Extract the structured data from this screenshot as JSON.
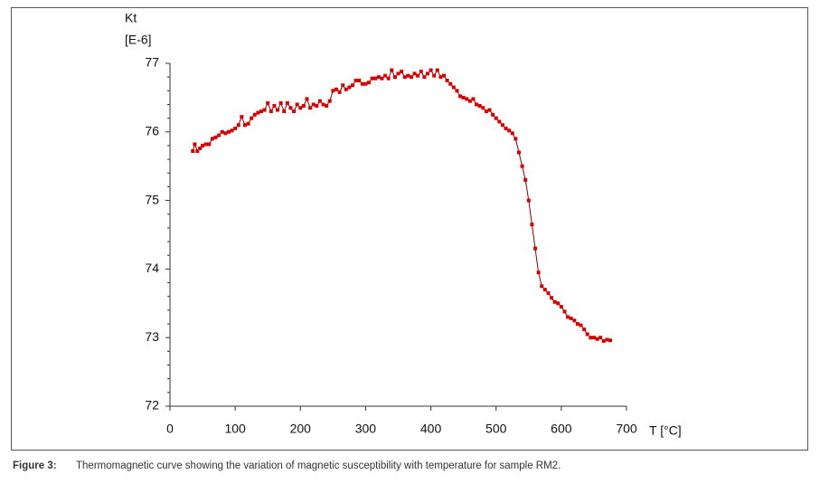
{
  "chart_data": {
    "type": "line",
    "ylabel": "Kt",
    "yunit": "[E-6]",
    "xlabel": "T [°C]",
    "x": [
      35,
      38,
      42,
      46,
      50,
      55,
      60,
      65,
      70,
      75,
      80,
      85,
      90,
      95,
      100,
      105,
      110,
      115,
      120,
      125,
      130,
      135,
      140,
      145,
      150,
      155,
      160,
      165,
      170,
      175,
      180,
      185,
      190,
      195,
      200,
      205,
      210,
      215,
      220,
      225,
      230,
      235,
      240,
      245,
      250,
      255,
      260,
      265,
      270,
      275,
      280,
      285,
      290,
      295,
      300,
      305,
      310,
      315,
      320,
      325,
      330,
      335,
      340,
      345,
      350,
      355,
      360,
      365,
      370,
      375,
      380,
      385,
      390,
      395,
      400,
      405,
      410,
      415,
      420,
      425,
      430,
      435,
      440,
      445,
      450,
      455,
      460,
      465,
      470,
      475,
      480,
      485,
      490,
      495,
      500,
      505,
      510,
      515,
      520,
      525,
      530,
      535,
      540,
      545,
      550,
      555,
      560,
      565,
      570,
      575,
      580,
      585,
      590,
      595,
      600,
      605,
      610,
      615,
      620,
      625,
      630,
      635,
      640,
      645,
      650,
      655,
      660,
      665,
      670,
      675
    ],
    "series": [
      {
        "name": "Kt",
        "color": "#d40000",
        "values": [
          75.72,
          75.82,
          75.72,
          75.76,
          75.8,
          75.82,
          75.82,
          75.9,
          75.92,
          75.95,
          76.0,
          75.98,
          76.0,
          76.02,
          76.05,
          76.1,
          76.22,
          76.1,
          76.12,
          76.2,
          76.25,
          76.28,
          76.3,
          76.32,
          76.42,
          76.3,
          76.38,
          76.32,
          76.42,
          76.3,
          76.42,
          76.35,
          76.3,
          76.4,
          76.35,
          76.38,
          76.48,
          76.35,
          76.4,
          76.38,
          76.45,
          76.4,
          76.38,
          76.45,
          76.6,
          76.62,
          76.58,
          76.68,
          76.62,
          76.65,
          76.68,
          76.75,
          76.75,
          76.7,
          76.7,
          76.72,
          76.78,
          76.78,
          76.8,
          76.78,
          76.82,
          76.78,
          76.9,
          76.8,
          76.85,
          76.88,
          76.8,
          76.82,
          76.8,
          76.85,
          76.82,
          76.88,
          76.8,
          76.85,
          76.9,
          76.82,
          76.9,
          76.8,
          76.82,
          76.75,
          76.7,
          76.65,
          76.6,
          76.52,
          76.5,
          76.48,
          76.45,
          76.48,
          76.4,
          76.38,
          76.35,
          76.3,
          76.32,
          76.25,
          76.2,
          76.15,
          76.1,
          76.05,
          76.02,
          75.98,
          75.9,
          75.7,
          75.5,
          75.3,
          75.0,
          74.65,
          74.3,
          73.95,
          73.75,
          73.7,
          73.65,
          73.58,
          73.52,
          73.5,
          73.45,
          73.38,
          73.3,
          73.28,
          73.25,
          73.2,
          73.18,
          73.12,
          73.05,
          73.0,
          73.0,
          72.98,
          73.0,
          72.95,
          72.97,
          72.96
        ]
      }
    ],
    "xlim": [
      0,
      700
    ],
    "xticks": [
      0,
      100,
      200,
      300,
      400,
      500,
      600,
      700
    ],
    "ylim": [
      72,
      77
    ],
    "yticks": [
      72,
      73,
      74,
      75,
      76,
      77
    ]
  },
  "caption": {
    "label": "Figure 3:",
    "text": "Thermomagnetic curve showing the variation of magnetic susceptibility with temperature for sample RM2."
  }
}
